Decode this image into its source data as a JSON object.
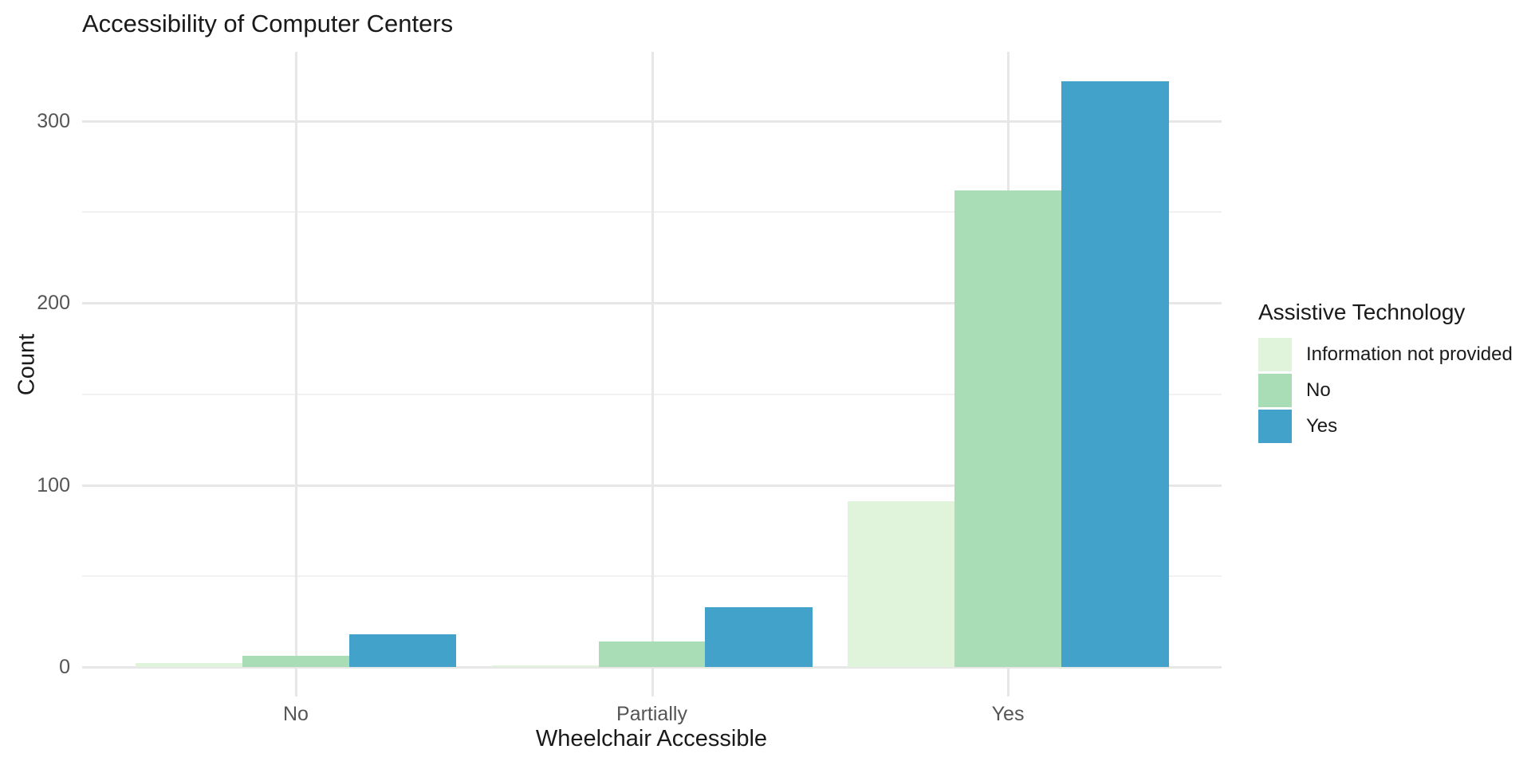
{
  "chart_data": {
    "type": "bar",
    "title": "Accessibility of Computer Centers",
    "xlabel": "Wheelchair Accessible",
    "ylabel": "Count",
    "categories": [
      "No",
      "Partially",
      "Yes"
    ],
    "series": [
      {
        "name": "Information not provided",
        "color": "#E0F3DB",
        "values": [
          2,
          1,
          91
        ]
      },
      {
        "name": "No",
        "color": "#A8DDB5",
        "values": [
          6,
          14,
          262
        ]
      },
      {
        "name": "Yes",
        "color": "#43A2CA",
        "values": [
          18,
          33,
          322
        ]
      }
    ],
    "legend": {
      "title": "Assistive Technology",
      "position": "right"
    },
    "y_ticks": [
      0,
      100,
      200,
      300
    ],
    "y_minor_ticks": [
      50,
      150,
      250
    ],
    "ylim": [
      0,
      338
    ],
    "grid": true,
    "colors": {
      "background": "#FFFFFF",
      "grid_major": "#E7E7E7",
      "grid_minor": "#F1F1F1",
      "tick_label": "#555555",
      "text": "#1A1A1A"
    }
  }
}
